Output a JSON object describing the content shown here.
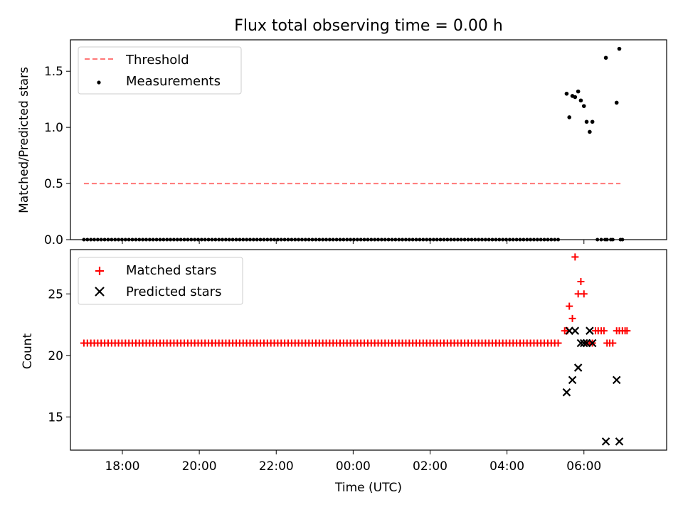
{
  "title": "Flux total observing time = 0.00 h",
  "chart_data": [
    {
      "type": "scatter",
      "panel": "top",
      "ylabel": "Matched/Predicted stars",
      "xlabel": "",
      "ylim": [
        0,
        1.78
      ],
      "yticks": [
        0.0,
        0.5,
        1.0,
        1.5
      ],
      "ytick_labels": [
        "0.0",
        "0.5",
        "1.0",
        "1.5"
      ],
      "legend_position": "top-left",
      "series": [
        {
          "name": "Threshold",
          "kind": "line",
          "style": "dashed",
          "color": "#ff7777",
          "x": [
            17.0,
            30.95
          ],
          "y": [
            0.5,
            0.5
          ]
        },
        {
          "name": "Measurements",
          "kind": "scatter",
          "marker": "dot",
          "color": "#000000",
          "x_zero_range": [
            17.0,
            29.35
          ],
          "x_zero_step": 0.09,
          "x_zero_extra": [
            30.35,
            30.45,
            30.55,
            30.6,
            30.7,
            30.75,
            30.95,
            31.0
          ],
          "points": [
            [
              29.55,
              1.3
            ],
            [
              29.62,
              1.09
            ],
            [
              29.7,
              1.28
            ],
            [
              29.77,
              1.27
            ],
            [
              29.85,
              1.32
            ],
            [
              29.92,
              1.24
            ],
            [
              30.0,
              1.19
            ],
            [
              30.07,
              1.05
            ],
            [
              30.15,
              0.96
            ],
            [
              30.22,
              1.05
            ],
            [
              30.57,
              1.62
            ],
            [
              30.85,
              1.22
            ],
            [
              30.92,
              1.7
            ]
          ]
        }
      ]
    },
    {
      "type": "scatter",
      "panel": "bottom",
      "ylabel": "Count",
      "xlabel": "Time (UTC)",
      "ylim": [
        12.3,
        28.6
      ],
      "yticks": [
        15,
        20,
        25
      ],
      "ytick_labels": [
        "15",
        "20",
        "25"
      ],
      "xlim": [
        16.65,
        32.15
      ],
      "xticks": [
        18,
        20,
        22,
        24,
        26,
        28,
        30
      ],
      "xtick_labels": [
        "18:00",
        "20:00",
        "22:00",
        "00:00",
        "02:00",
        "04:00",
        "06:00"
      ],
      "legend_position": "top-left",
      "series": [
        {
          "name": "Matched stars",
          "marker": "plus",
          "color": "#ff0000",
          "x_flat_range": [
            17.0,
            29.35
          ],
          "x_flat_step": 0.09,
          "flat_value": 21,
          "points": [
            [
              29.5,
              22
            ],
            [
              29.57,
              22
            ],
            [
              29.62,
              24
            ],
            [
              29.7,
              23
            ],
            [
              29.77,
              28
            ],
            [
              29.85,
              25
            ],
            [
              29.92,
              26
            ],
            [
              30.0,
              25
            ],
            [
              30.07,
              21
            ],
            [
              30.15,
              21
            ],
            [
              30.22,
              21
            ],
            [
              30.3,
              22
            ],
            [
              30.37,
              22
            ],
            [
              30.45,
              22
            ],
            [
              30.52,
              22
            ],
            [
              30.6,
              21
            ],
            [
              30.67,
              21
            ],
            [
              30.75,
              21
            ],
            [
              30.85,
              22
            ],
            [
              30.92,
              22
            ],
            [
              31.0,
              22
            ],
            [
              31.07,
              22
            ],
            [
              31.12,
              22
            ]
          ]
        },
        {
          "name": "Predicted stars",
          "marker": "x",
          "color": "#000000",
          "points": [
            [
              29.55,
              17
            ],
            [
              29.62,
              22
            ],
            [
              29.7,
              18
            ],
            [
              29.77,
              22
            ],
            [
              29.85,
              19
            ],
            [
              29.92,
              21
            ],
            [
              30.0,
              21
            ],
            [
              30.07,
              21
            ],
            [
              30.15,
              22
            ],
            [
              30.22,
              21
            ],
            [
              30.57,
              13
            ],
            [
              30.85,
              18
            ],
            [
              30.92,
              13
            ]
          ]
        }
      ]
    }
  ],
  "legends": {
    "top": [
      "Threshold",
      "Measurements"
    ],
    "bottom": [
      "Matched stars",
      "Predicted stars"
    ]
  }
}
